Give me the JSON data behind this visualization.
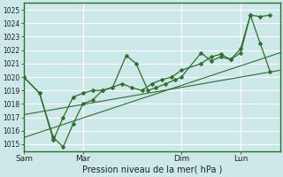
{
  "xlabel": "Pression niveau de la mer( hPa )",
  "ylim": [
    1014.5,
    1025.5
  ],
  "yticks": [
    1015,
    1016,
    1017,
    1018,
    1019,
    1020,
    1021,
    1022,
    1023,
    1024,
    1025
  ],
  "bg_color": "#cce8e8",
  "plot_bg": "#cce8e8",
  "grid_color": "#ffffff",
  "line_color": "#2d6e2d",
  "xtick_labels": [
    "Sam",
    "Mar",
    "Dim",
    "Lun"
  ],
  "xtick_positions": [
    0,
    3,
    8,
    11
  ],
  "xlim": [
    0,
    13
  ],
  "line1_x": [
    0,
    0.8,
    1.5,
    2.0,
    2.5,
    3.0,
    3.5,
    4.0,
    4.5,
    5.2,
    5.7,
    6.3,
    6.7,
    7.2,
    7.7,
    8.0,
    9.0,
    9.5,
    10.0,
    10.5,
    11.0,
    11.5,
    12.0,
    12.5
  ],
  "line1_y": [
    1020,
    1018.8,
    1015.5,
    1014.8,
    1016.5,
    1018,
    1018.3,
    1019,
    1019.2,
    1021.6,
    1021.0,
    1019.0,
    1019.2,
    1019.5,
    1019.8,
    1020.0,
    1021.8,
    1021.2,
    1021.5,
    1021.3,
    1021.8,
    1024.6,
    1024.5,
    1024.6
  ],
  "line2_x": [
    0,
    0.8,
    1.5,
    2.0,
    2.5,
    3.0,
    3.5,
    4.0,
    5.0,
    5.5,
    6.0,
    6.5,
    7.0,
    7.5,
    8.0,
    9.0,
    9.5,
    10.0,
    10.5,
    11.0,
    11.5,
    12.0,
    12.5
  ],
  "line2_y": [
    1020,
    1018.8,
    1015.3,
    1017.0,
    1018.5,
    1018.8,
    1019.0,
    1019.0,
    1019.5,
    1019.2,
    1019.0,
    1019.5,
    1019.8,
    1020.0,
    1020.5,
    1021.0,
    1021.5,
    1021.7,
    1021.3,
    1022.1,
    1024.6,
    1022.5,
    1020.4
  ],
  "trend1_x": [
    0,
    13
  ],
  "trend1_y": [
    1017.2,
    1020.5
  ],
  "trend2_x": [
    0,
    13
  ],
  "trend2_y": [
    1015.5,
    1021.8
  ],
  "ylabel_fontsize": 5.5,
  "xlabel_fontsize": 7,
  "xtick_fontsize": 6.5,
  "figsize": [
    3.2,
    2.0
  ],
  "dpi": 100
}
